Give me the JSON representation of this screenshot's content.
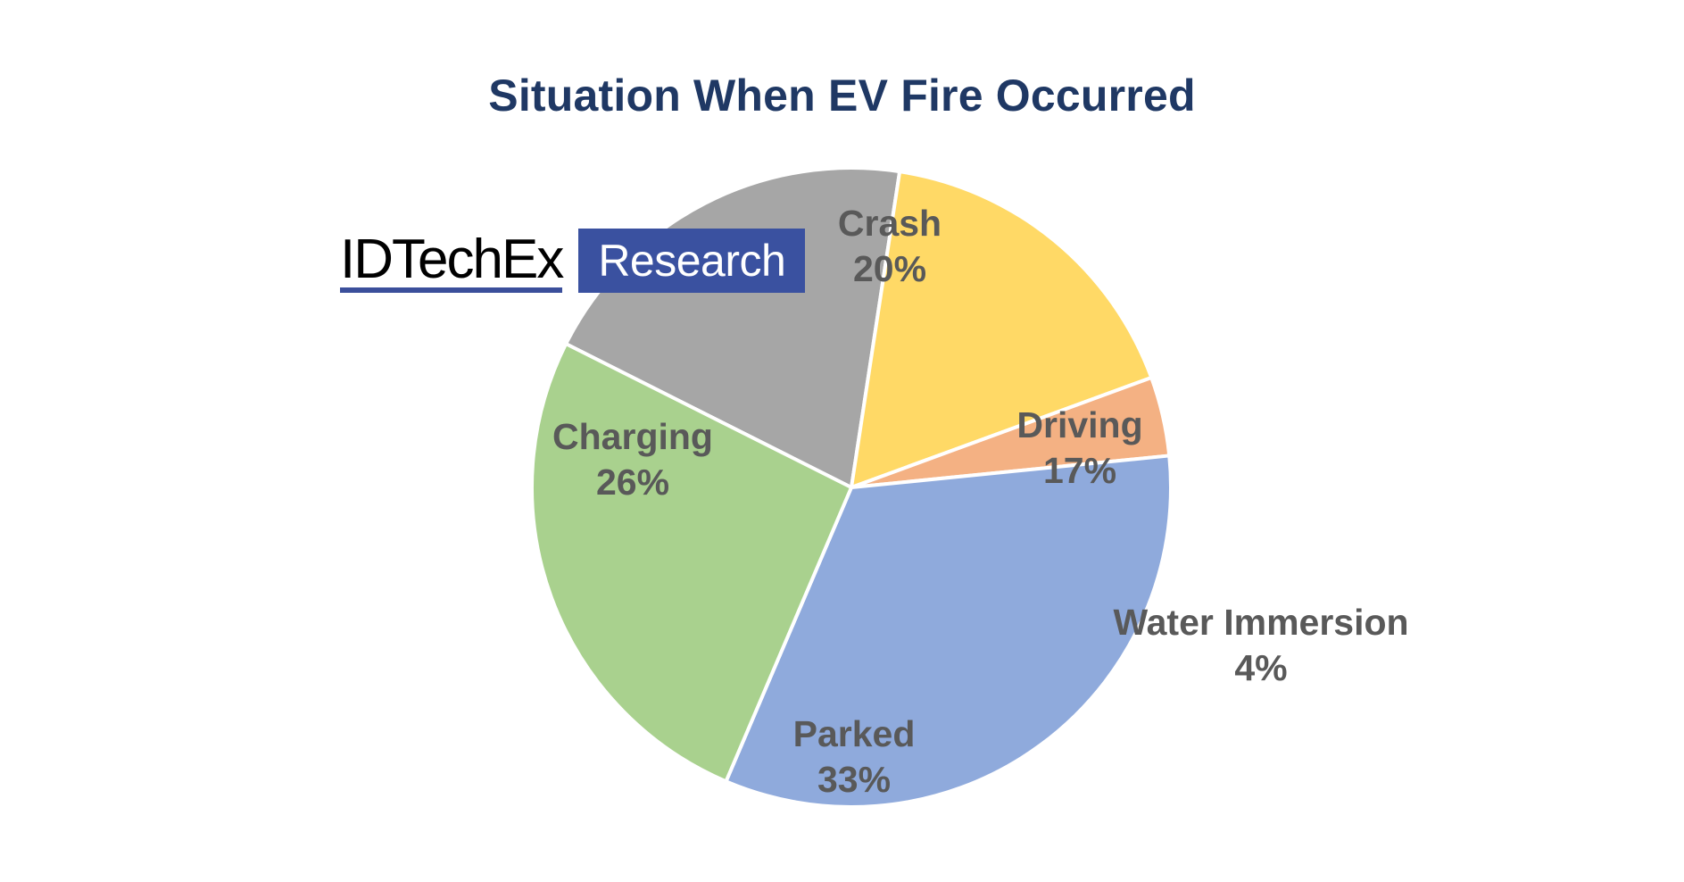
{
  "chart_data": {
    "type": "pie",
    "title": "Situation When EV Fire Occurred",
    "slices": [
      {
        "label": "Crash",
        "value": 20,
        "display": "20%",
        "color": "#a6a6a6"
      },
      {
        "label": "Driving",
        "value": 17,
        "display": "17%",
        "color": "#ffd966"
      },
      {
        "label": "Water Immersion",
        "value": 4,
        "display": "4%",
        "color": "#f4b183"
      },
      {
        "label": "Parked",
        "value": 33,
        "display": "33%",
        "color": "#8faadc"
      },
      {
        "label": "Charging",
        "value": 26,
        "display": "26%",
        "color": "#a9d18e"
      }
    ],
    "label_color": "#595959",
    "title_color": "#1f3864",
    "legend": "none"
  },
  "logo": {
    "wordmark": "IDTechEx",
    "badge": "Research",
    "badge_color": "#3a51a0"
  }
}
